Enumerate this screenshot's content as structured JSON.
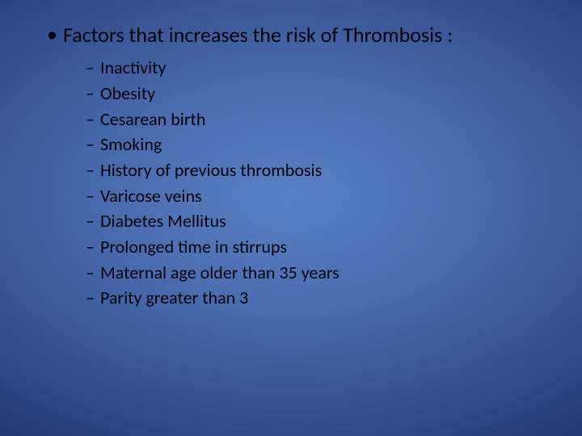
{
  "slide": {
    "background": {
      "type": "radial-gradient",
      "center_color": "#5a7fc4",
      "mid_color": "#2f4a8a",
      "edge_color": "#0a1838"
    },
    "text_color": "#000000",
    "main_bullet_char": "•",
    "sub_bullet_char": "–",
    "main": {
      "fontsize": 26,
      "text": "Factors that increases the risk of Thrombosis :"
    },
    "sub": {
      "fontsize": 22,
      "items": [
        "Inactivity",
        "Obesity",
        "Cesarean birth",
        "Smoking",
        "History of previous thrombosis",
        "Varicose veins",
        "Diabetes Mellitus",
        "Prolonged time in stirrups",
        "Maternal age older than 35 years",
        "Parity greater than 3"
      ]
    }
  }
}
